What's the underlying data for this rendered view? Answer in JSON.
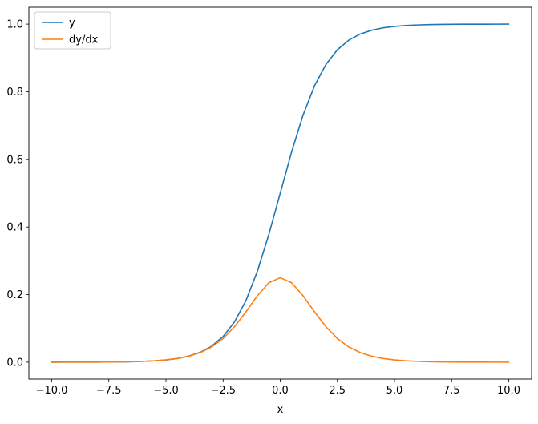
{
  "figure": {
    "background": "#ffffff",
    "axes_edge_color": "#000000",
    "legend_edge_color": "#cccccc"
  },
  "chart_data": {
    "type": "line",
    "title": "",
    "xlabel": "x",
    "ylabel": "",
    "grid": false,
    "xlim": [
      -11,
      11
    ],
    "ylim": [
      -0.05,
      1.05
    ],
    "legend": {
      "position": "upper left",
      "entries": [
        "y",
        "dy/dx"
      ]
    },
    "xticks": {
      "values": [
        -10,
        -7.5,
        -5,
        -2.5,
        0,
        2.5,
        5,
        7.5,
        10
      ],
      "labels": [
        "−10.0",
        "−7.5",
        "−5.0",
        "−2.5",
        "0.0",
        "2.5",
        "5.0",
        "7.5",
        "10.0"
      ]
    },
    "yticks": {
      "values": [
        0,
        0.2,
        0.4,
        0.6,
        0.8,
        1.0
      ],
      "labels": [
        "0.0",
        "0.2",
        "0.4",
        "0.6",
        "0.8",
        "1.0"
      ]
    },
    "x": [
      -10,
      -9.5,
      -9,
      -8.5,
      -8,
      -7.5,
      -7,
      -6.5,
      -6,
      -5.5,
      -5,
      -4.5,
      -4,
      -3.5,
      -3,
      -2.5,
      -2,
      -1.5,
      -1,
      -0.5,
      0,
      0.5,
      1,
      1.5,
      2,
      2.5,
      3,
      3.5,
      4,
      4.5,
      5,
      5.5,
      6,
      6.5,
      7,
      7.5,
      8,
      8.5,
      9,
      9.5,
      10
    ],
    "series": [
      {
        "name": "y",
        "color": "#1f77b4",
        "values": [
          5e-05,
          7e-05,
          0.00012,
          0.0002,
          0.00034,
          0.00055,
          0.00091,
          0.0015,
          0.00247,
          0.00407,
          0.00669,
          0.01099,
          0.01799,
          0.02931,
          0.04743,
          0.07586,
          0.1192,
          0.18243,
          0.26894,
          0.37754,
          0.5,
          0.62246,
          0.73106,
          0.81757,
          0.8808,
          0.92414,
          0.95257,
          0.97069,
          0.98201,
          0.98901,
          0.99331,
          0.99593,
          0.99753,
          0.9985,
          0.99909,
          0.99945,
          0.99966,
          0.9998,
          0.99988,
          0.99993,
          0.99995
        ]
      },
      {
        "name": "dy/dx",
        "color": "#ff7f0e",
        "values": [
          5e-05,
          7e-05,
          0.00012,
          0.0002,
          0.00033,
          0.00055,
          0.00091,
          0.0015,
          0.00246,
          0.00405,
          0.00665,
          0.01087,
          0.01766,
          0.02845,
          0.04518,
          0.0701,
          0.10499,
          0.14915,
          0.19661,
          0.235,
          0.25,
          0.235,
          0.19661,
          0.14915,
          0.10499,
          0.0701,
          0.04518,
          0.02845,
          0.01766,
          0.01087,
          0.00665,
          0.00405,
          0.00246,
          0.0015,
          0.00091,
          0.00055,
          0.00033,
          0.0002,
          0.00012,
          7e-05,
          5e-05
        ]
      }
    ]
  }
}
